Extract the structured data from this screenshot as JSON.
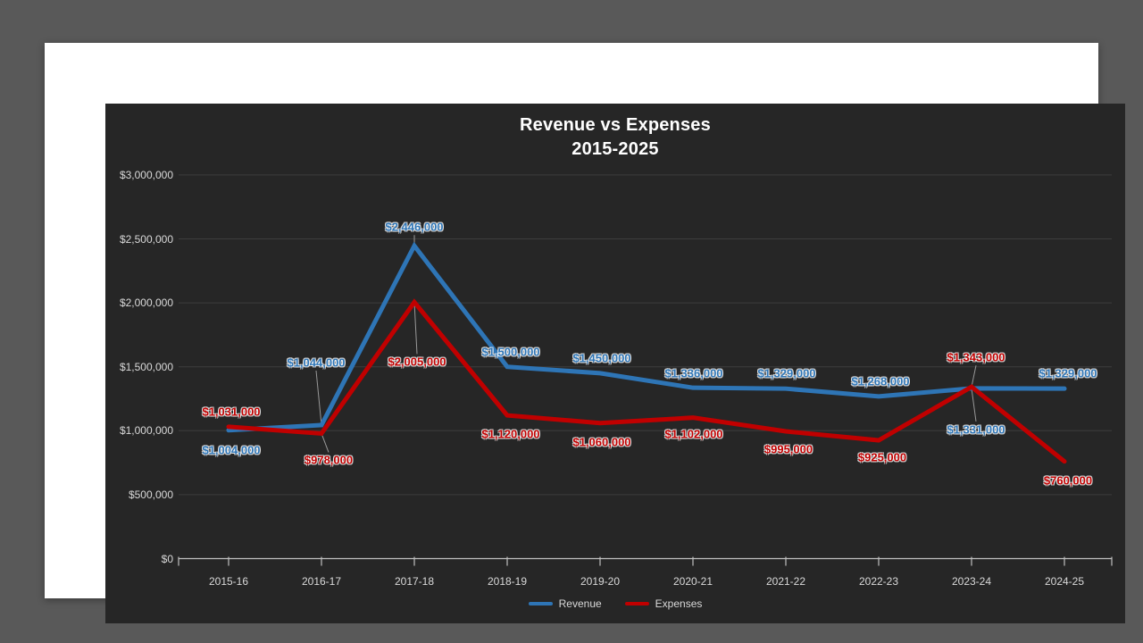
{
  "frame": {
    "outer_bg": "#595959",
    "slide_bg": "#FFFFFF",
    "chart_bg": "#262626"
  },
  "chart": {
    "title_line1": "Revenue vs Expenses",
    "title_line2": "2015-2025",
    "title_color": "#FFFFFF"
  },
  "legend": {
    "items": [
      {
        "label": "Revenue",
        "color": "#2E75B6"
      },
      {
        "label": "Expenses",
        "color": "#C00000"
      }
    ]
  },
  "chart_data": {
    "type": "line",
    "title": "Revenue vs Expenses 2015-2025",
    "xlabel": "",
    "ylabel": "",
    "grid": true,
    "legend_position": "bottom",
    "categories": [
      "2015-16",
      "2016-17",
      "2017-18",
      "2018-19",
      "2019-20",
      "2020-21",
      "2021-22",
      "2022-23",
      "2023-24",
      "2024-25"
    ],
    "series": [
      {
        "name": "Revenue",
        "color": "#2E75B6",
        "values": [
          1004000,
          1044000,
          2446000,
          1500000,
          1450000,
          1336000,
          1329000,
          1268000,
          1331000,
          1329000
        ],
        "labels": [
          "$1,004,000",
          "$1,044,000",
          "$2,446,000",
          "$1,500,000",
          "$1,450,000",
          "$1,336,000",
          "$1,329,000",
          "$1,268,000",
          "$1,331,000",
          "$1,329,000"
        ]
      },
      {
        "name": "Expenses",
        "color": "#C00000",
        "values": [
          1031000,
          978000,
          2005000,
          1120000,
          1060000,
          1102000,
          995000,
          925000,
          1343000,
          760000
        ],
        "labels": [
          "$1,031,000",
          "$978,000",
          "$2,005,000",
          "$1,120,000",
          "$1,060,000",
          "$1,102,000",
          "$995,000",
          "$925,000",
          "$1,343,000",
          "$760,000"
        ]
      }
    ],
    "y_axis": {
      "min": 0,
      "max": 3000000,
      "tick_step": 500000,
      "tick_values": [
        0,
        500000,
        1000000,
        1500000,
        2000000,
        2500000,
        3000000
      ],
      "tick_labels": [
        "$0",
        "$500,000",
        "$1,000,000",
        "$1,500,000",
        "$2,000,000",
        "$2,500,000",
        "$3,000,000"
      ]
    },
    "colors": {
      "gridline": "#3D3D3D",
      "axis": "#BFBFBF",
      "tick_text": "#D9D9D9",
      "leader": "#999999"
    }
  }
}
